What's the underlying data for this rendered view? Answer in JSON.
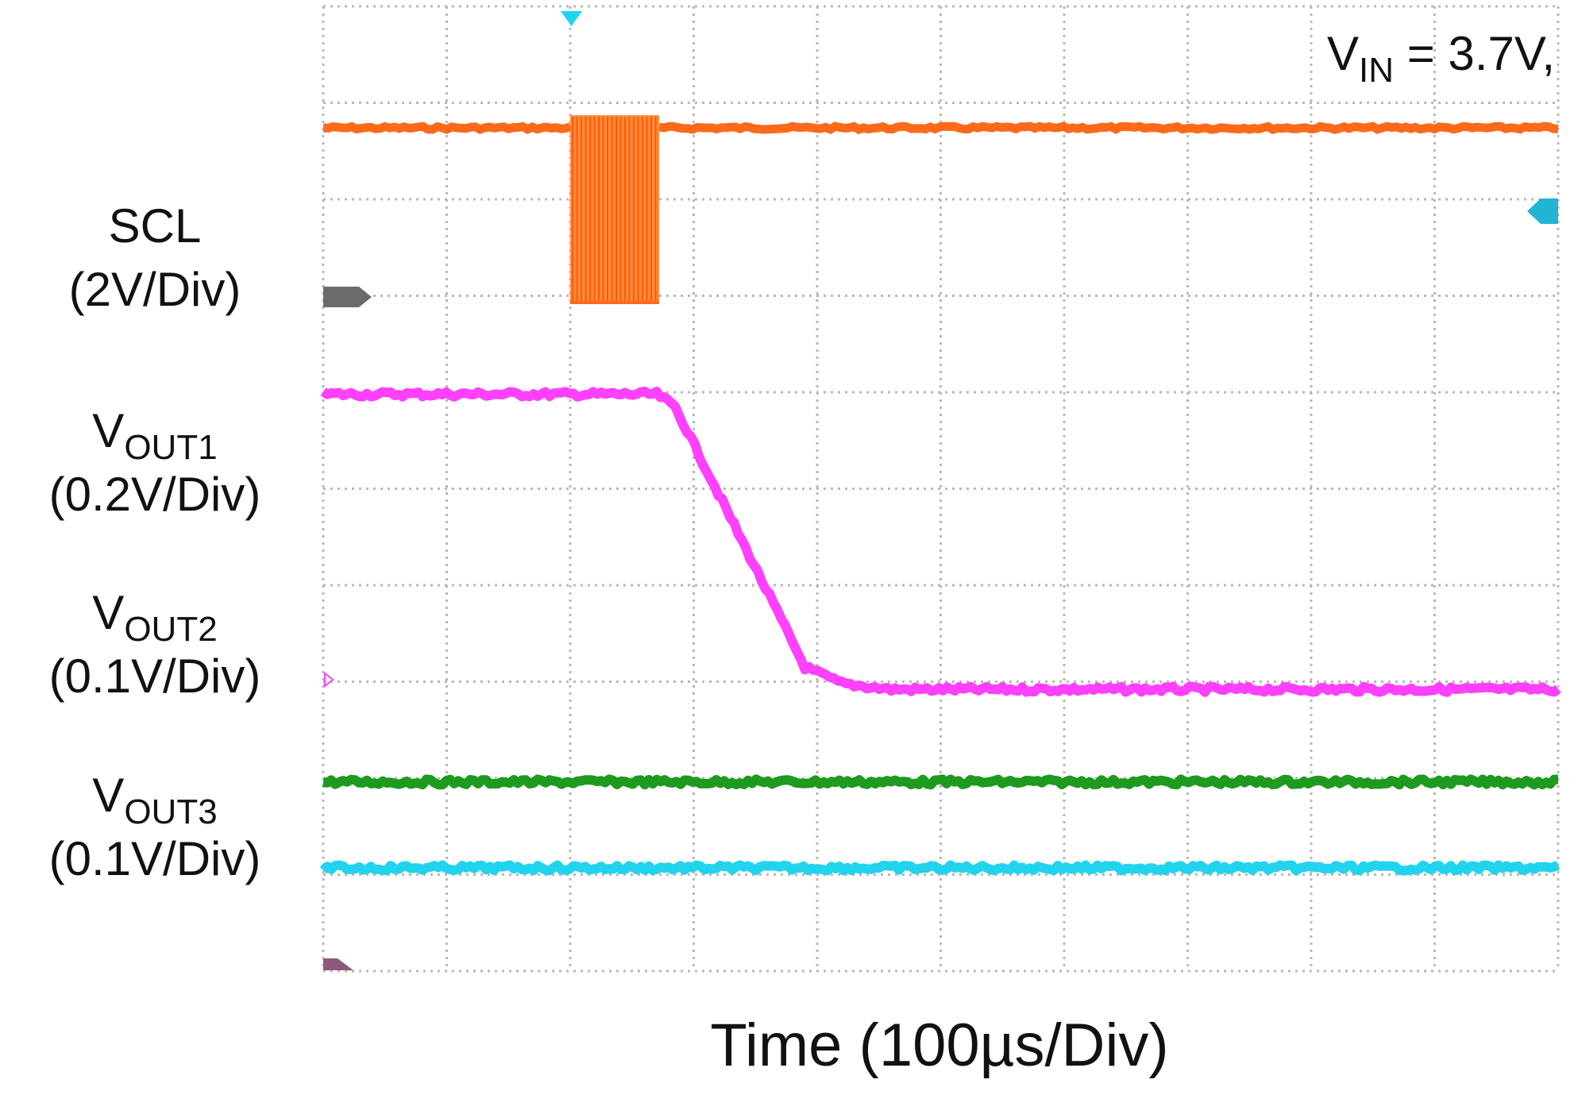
{
  "chart_data": {
    "type": "line",
    "title": "",
    "annotation": {
      "name": "V",
      "sub": "IN",
      "text": " = 3.7V,"
    },
    "xlabel": "Time (100µs/Div)",
    "x_unit": "div",
    "y_unit": "div",
    "xlim": [
      0,
      10
    ],
    "ylim": [
      0,
      10
    ],
    "grid": true,
    "grid_style": "dotted",
    "x_divisions": 10,
    "y_divisions": 10,
    "trigger_x": 2,
    "channels": [
      {
        "label": {
          "name": "SCL",
          "sub": "",
          "scale": "(2V/Div)"
        },
        "color": "#ff6a1a",
        "kind": "burst",
        "high": 8.74,
        "low": 6.93,
        "burst_x": [
          2.0,
          2.72
        ]
      },
      {
        "label": {
          "name": "V",
          "sub": "OUT1",
          "scale": "(0.2V/Div)"
        },
        "color": "#ff40ff",
        "points": [
          [
            0,
            5.98
          ],
          [
            2.7,
            5.98
          ],
          [
            2.85,
            5.85
          ],
          [
            3.9,
            3.15
          ],
          [
            4.2,
            2.98
          ],
          [
            4.6,
            2.92
          ],
          [
            10,
            2.92
          ]
        ]
      },
      {
        "label": {
          "name": "V",
          "sub": "OUT2",
          "scale": "(0.1V/Div)"
        },
        "color": "#1e9a1e",
        "points": [
          [
            0,
            1.96
          ],
          [
            10,
            1.96
          ]
        ]
      },
      {
        "label": {
          "name": "V",
          "sub": "OUT3",
          "scale": "(0.1V/Div)"
        },
        "color": "#22d3ee",
        "points": [
          [
            0,
            1.07
          ],
          [
            10,
            1.07
          ]
        ]
      }
    ]
  }
}
